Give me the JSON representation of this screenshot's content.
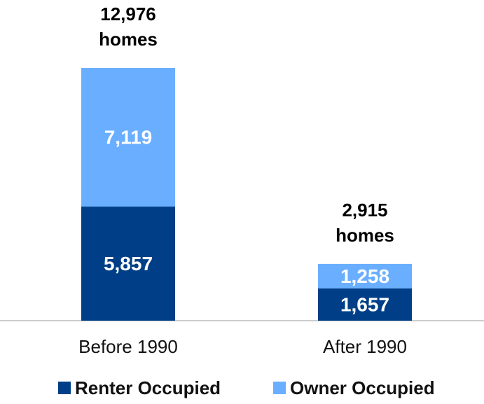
{
  "chart_data": {
    "type": "stacked_bar",
    "categories": [
      "Before 1990",
      "After 1990"
    ],
    "series": [
      {
        "name": "Renter Occupied",
        "color": "#003f87",
        "values": [
          5857,
          1657
        ],
        "value_labels": [
          "5,857",
          "1,657"
        ]
      },
      {
        "name": "Owner Occupied",
        "color": "#6aafff",
        "values": [
          7119,
          1258
        ],
        "value_labels": [
          "7,119",
          "1,258"
        ]
      }
    ],
    "totals": [
      12976,
      2915
    ],
    "total_labels": [
      [
        "12,976",
        "homes"
      ],
      [
        "2,915",
        "homes"
      ]
    ],
    "ylim": [
      0,
      14000
    ]
  }
}
